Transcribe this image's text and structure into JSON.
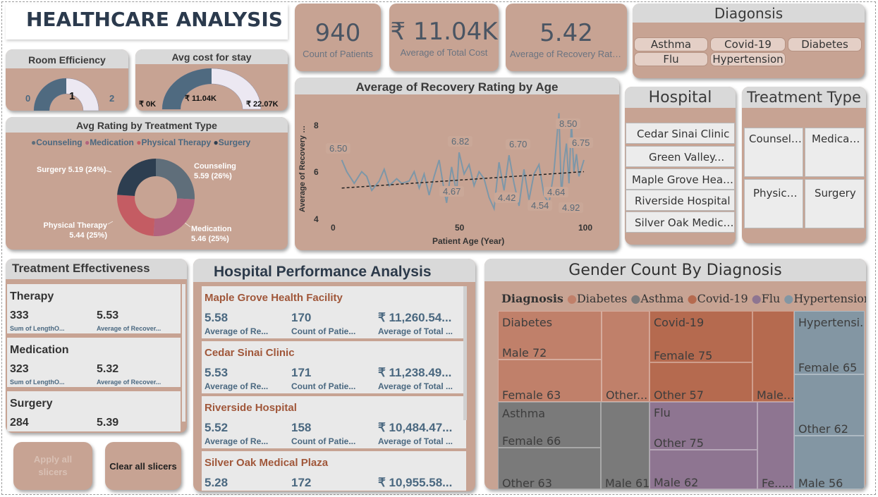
{
  "header": {
    "title": "HEALTHCARE ANALYSIS"
  },
  "room_efficiency": {
    "title": "Room Efficiency",
    "min": "0",
    "max": "2",
    "value": "1",
    "fill_fraction": 0.5
  },
  "avg_cost": {
    "title": "Avg cost for stay",
    "min": "₹ 0K",
    "max": "₹ 22.07K",
    "value": "₹ 11.04K",
    "fill_fraction": 0.5
  },
  "kpis": [
    {
      "value": "940",
      "label": "Count of Patients"
    },
    {
      "value": "₹ 11.04K",
      "label": "Average of Total Cost"
    },
    {
      "value": "5.42",
      "label": "Average of Recovery Rating"
    }
  ],
  "diagnosis_slicer": {
    "title": "Diagonsis",
    "items": [
      "Asthma",
      "Covid-19",
      "Diabetes",
      "Flu",
      "Hypertension"
    ]
  },
  "hospital_slicer": {
    "title": "Hospital",
    "items": [
      "Cedar Sinai Clinic",
      "Green Valley...",
      "Maple Grove Healt...",
      "Riverside Hospital",
      "Silver Oak Medical..."
    ]
  },
  "treatment_slicer": {
    "title": "Treatment Type",
    "items": [
      "Counseli...",
      "Medicati...",
      "Physical...",
      "Surgery"
    ]
  },
  "donut": {
    "title": "Avg Rating by Treatment Type",
    "legend": [
      {
        "name": "Counseling",
        "color": "#5f6e7a"
      },
      {
        "name": "Medication",
        "color": "#b2637e"
      },
      {
        "name": "Physical Therapy",
        "color": "#c45c63"
      },
      {
        "name": "Surgery",
        "color": "#2d3e50"
      }
    ],
    "labels": {
      "counseling": [
        "Counseling",
        "5.59 (26%)"
      ],
      "medication": [
        "Medication",
        "5.46 (25%)"
      ],
      "physical": [
        "Physical Therapy",
        "5.44 (25%)"
      ],
      "surgery": "Surgery 5.19 (24%)"
    }
  },
  "line_chart": {
    "title": "Average of Recovery Rating by Age",
    "xlabel": "Patient Age (Year)",
    "ylabel": "Average of Recovery Rat...",
    "xticks": [
      "0",
      "50",
      "100"
    ],
    "yticks": [
      "4",
      "6",
      "8"
    ],
    "data_labels": [
      "6.50",
      "6.82",
      "6.70",
      "8.50",
      "6.75",
      "4.67",
      "4.42",
      "4.54",
      "4.64",
      "4.92"
    ]
  },
  "chart_data": {
    "type": "line",
    "title": "Average of Recovery Rating by Age",
    "xlabel": "Patient Age (Year)",
    "ylabel": "Average of Recovery Rat...",
    "xlim": [
      0,
      100
    ],
    "ylim": [
      4,
      8.8
    ],
    "series": [
      {
        "x": [
          3,
          5,
          8,
          11,
          13,
          15,
          18,
          20,
          22,
          25,
          27,
          30,
          32,
          34,
          36,
          38,
          40,
          42,
          44,
          45,
          47,
          49,
          50,
          52,
          54,
          56,
          58,
          60,
          62,
          64,
          66,
          68,
          70,
          72,
          74,
          76,
          78,
          80,
          82,
          84,
          86,
          88,
          90,
          91,
          92,
          93,
          94,
          95,
          96,
          97,
          98,
          100
        ],
        "values": [
          6.5,
          6.0,
          5.5,
          6.0,
          5.8,
          5.2,
          5.6,
          6.1,
          5.4,
          5.7,
          5.5,
          5.6,
          6.0,
          5.3,
          5.9,
          5.0,
          5.8,
          6.5,
          5.2,
          4.67,
          6.2,
          5.1,
          6.82,
          5.9,
          6.3,
          5.4,
          6.0,
          5.7,
          4.9,
          4.42,
          6.4,
          5.2,
          6.7,
          5.5,
          4.54,
          6.1,
          4.8,
          5.9,
          6.3,
          5.0,
          4.64,
          6.0,
          8.5,
          4.92,
          6.4,
          7.2,
          5.5,
          8.1,
          6.0,
          6.75,
          5.8,
          6.5
        ]
      },
      {
        "name": "Trend",
        "x": [
          3,
          100
        ],
        "values": [
          5.3,
          6.0
        ]
      }
    ]
  },
  "treatment_effectiveness": {
    "title": "Treatment Effectiveness",
    "items": [
      {
        "name": "Therapy",
        "sum": "333",
        "avg": "5.53",
        "sum_label": "Sum of LengthO...",
        "avg_label": "Average of Recover..."
      },
      {
        "name": "Medication",
        "sum": "323",
        "avg": "5.32",
        "sum_label": "Sum of LengthO...",
        "avg_label": "Average of Recover..."
      },
      {
        "name": "Surgery",
        "sum": "284",
        "avg": "5.39",
        "sum_label": "",
        "avg_label": ""
      }
    ]
  },
  "hospital_performance": {
    "title": "Hospital Performance Analysis",
    "items": [
      {
        "name": "Maple Grove Health Facility",
        "avg": "5.58",
        "count": "170",
        "cost": "₹ 11,260.54...",
        "l1": "Average of Re...",
        "l2": "Count of Patie...",
        "l3": "Average of Total ..."
      },
      {
        "name": "Cedar Sinai Clinic",
        "avg": "5.53",
        "count": "171",
        "cost": "₹ 11,238.49...",
        "l1": "Average of Re...",
        "l2": "Count of Patie...",
        "l3": "Average of Total ..."
      },
      {
        "name": "Riverside Hospital",
        "avg": "5.52",
        "count": "158",
        "cost": "₹ 10,484.47...",
        "l1": "Average of Re...",
        "l2": "Count of Patie...",
        "l3": "Average of Total ..."
      },
      {
        "name": "Silver Oak Medical Plaza",
        "avg": "5.28",
        "count": "172",
        "cost": "₹ 10,955.58...",
        "l1": "",
        "l2": "",
        "l3": ""
      }
    ]
  },
  "treemap": {
    "title": "Gender Count By Diagnosis",
    "legend_title": "Diagnosis",
    "legend": [
      {
        "name": "Diabetes",
        "color": "#c0806a"
      },
      {
        "name": "Asthma",
        "color": "#7a7a7a"
      },
      {
        "name": "Covid-19",
        "color": "#b56a4f"
      },
      {
        "name": "Flu",
        "color": "#8e7591"
      },
      {
        "name": "Hypertension",
        "color": "#8396a3"
      }
    ],
    "cells": {
      "diabetes": "Diabetes",
      "diabetes_male": "Male 72",
      "diabetes_female": "Female 63",
      "diabetes_other": "Other...",
      "covid": "Covid-19",
      "covid_female": "Female 75",
      "covid_other": "Other 57",
      "covid_male": "Male...",
      "hypertension": "Hypertensi...",
      "hyper_female": "Female 65",
      "hyper_other": "Other 62",
      "hyper_male": "Male 56",
      "asthma": "Asthma",
      "asthma_female": "Female 66",
      "asthma_other": "Other 63",
      "asthma_male": "Male 61",
      "flu": "Flu",
      "flu_other": "Other 75",
      "flu_male": "Male 62",
      "flu_female": "Fe......"
    }
  },
  "buttons": {
    "apply": "Apply all slicers",
    "clear": "Clear all slicers"
  }
}
